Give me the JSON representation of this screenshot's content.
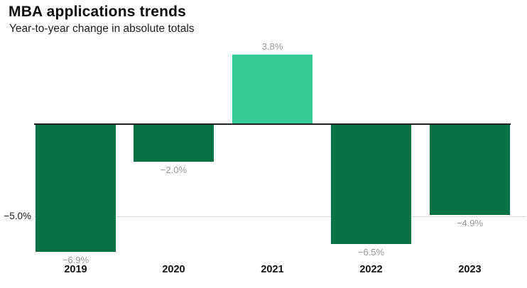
{
  "header": {
    "title": "MBA applications trends",
    "subtitle": "Year-to-year change in absolute totals"
  },
  "chart_data": {
    "type": "bar",
    "title": "MBA applications trends",
    "subtitle": "Year-to-year change in absolute totals",
    "categories": [
      "2019",
      "2020",
      "2021",
      "2022",
      "2023"
    ],
    "values": [
      -6.9,
      -2.0,
      3.8,
      -6.5,
      -4.9
    ],
    "data_labels": [
      "−6.9%",
      "−2.0%",
      "3.8%",
      "−6.5%",
      "−4.9%"
    ],
    "unit": "%",
    "yticks": [
      {
        "label": "−5.0%",
        "value": -5.0
      }
    ],
    "ylim": [
      -7.5,
      4.5
    ],
    "baseline_value": 0,
    "grid": "single horizontal gridline at -5.0%, dark baseline at 0",
    "legend": "none",
    "colors": {
      "positive_bar": "#36c995",
      "negative_bar": "#077245",
      "baseline": "#222222",
      "gridline": "#d9d9d9",
      "value_label": "#979797",
      "year_label": "#121212"
    }
  }
}
